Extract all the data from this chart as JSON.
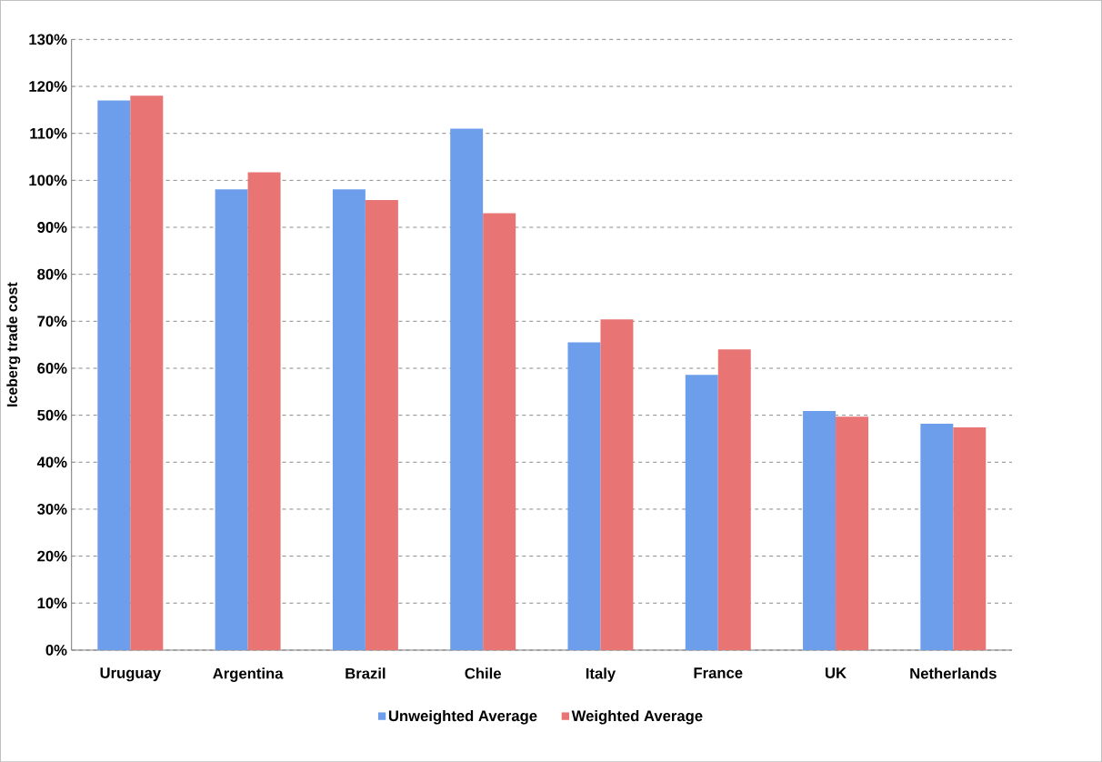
{
  "chart_data": {
    "type": "bar",
    "ylabel": "Iceberg trade cost",
    "categories": [
      "Uruguay",
      "Argentina",
      "Brazil",
      "Chile",
      "Italy",
      "France",
      "UK",
      "Netherlands"
    ],
    "series": [
      {
        "name": "Unweighted Average",
        "color": "#6d9eeb",
        "values": [
          117.0,
          98.1,
          98.1,
          111.0,
          65.5,
          58.6,
          50.9,
          48.2
        ]
      },
      {
        "name": "Weighted Average",
        "color": "#e87474",
        "values": [
          118.0,
          101.7,
          95.8,
          93.0,
          70.4,
          64.0,
          49.7,
          47.4
        ]
      }
    ],
    "ylim": [
      0,
      130
    ],
    "yticks": [
      {
        "value": 0,
        "label": "0%"
      },
      {
        "value": 10,
        "label": "10%"
      },
      {
        "value": 20,
        "label": "20%"
      },
      {
        "value": 30,
        "label": "30%"
      },
      {
        "value": 40,
        "label": "40%"
      },
      {
        "value": 50,
        "label": "50%"
      },
      {
        "value": 60,
        "label": "60%"
      },
      {
        "value": 70,
        "label": "70%"
      },
      {
        "value": 80,
        "label": "80%"
      },
      {
        "value": 90,
        "label": "90%"
      },
      {
        "value": 100,
        "label": "100%"
      },
      {
        "value": 110,
        "label": "110%"
      },
      {
        "value": 120,
        "label": "120%"
      },
      {
        "value": 130,
        "label": "130%"
      }
    ],
    "grid": "y",
    "legend": "bottom"
  }
}
